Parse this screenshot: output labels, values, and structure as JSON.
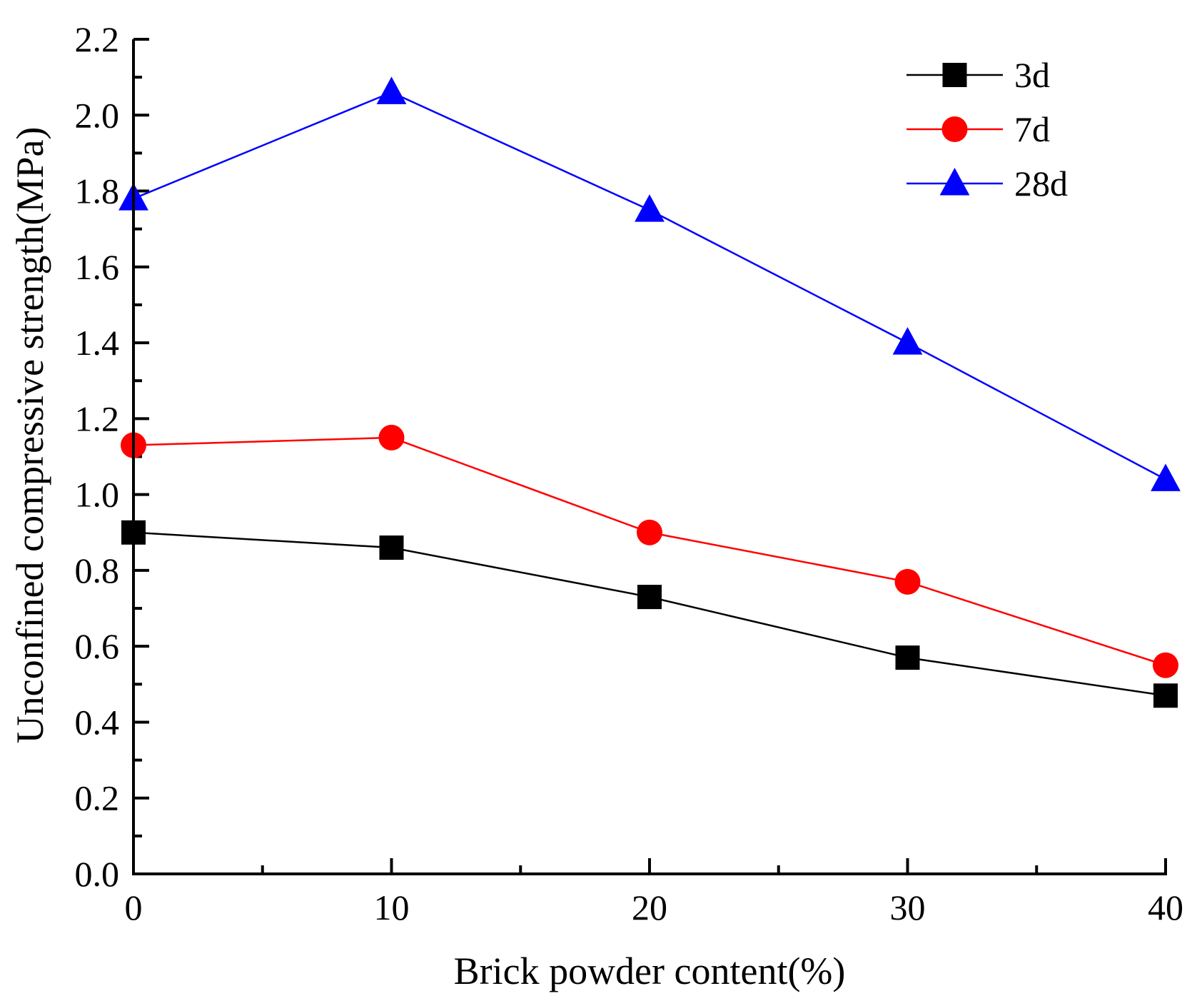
{
  "chart_data": {
    "type": "line",
    "title": "",
    "xlabel": "Brick powder content(%)",
    "ylabel": "Unconfined compressive strength(MPa)",
    "x": [
      0,
      10,
      20,
      30,
      40
    ],
    "xlim": [
      0,
      40
    ],
    "ylim": [
      0.0,
      2.2
    ],
    "xticks": [
      "0",
      "10",
      "20",
      "30",
      "40"
    ],
    "yticks": [
      "0.0",
      "0.2",
      "0.4",
      "0.6",
      "0.8",
      "1.0",
      "1.2",
      "1.4",
      "1.6",
      "1.8",
      "2.0",
      "2.2"
    ],
    "grid": false,
    "legend_position": "top-right",
    "series": [
      {
        "name": "3d",
        "marker": "square",
        "color": "#000000",
        "values": [
          0.9,
          0.86,
          0.73,
          0.57,
          0.47
        ]
      },
      {
        "name": "7d",
        "marker": "circle",
        "color": "#ff0000",
        "values": [
          1.13,
          1.15,
          0.9,
          0.77,
          0.55
        ]
      },
      {
        "name": "28d",
        "marker": "triangle",
        "color": "#0000ff",
        "values": [
          1.78,
          2.06,
          1.75,
          1.4,
          1.04
        ]
      }
    ]
  }
}
